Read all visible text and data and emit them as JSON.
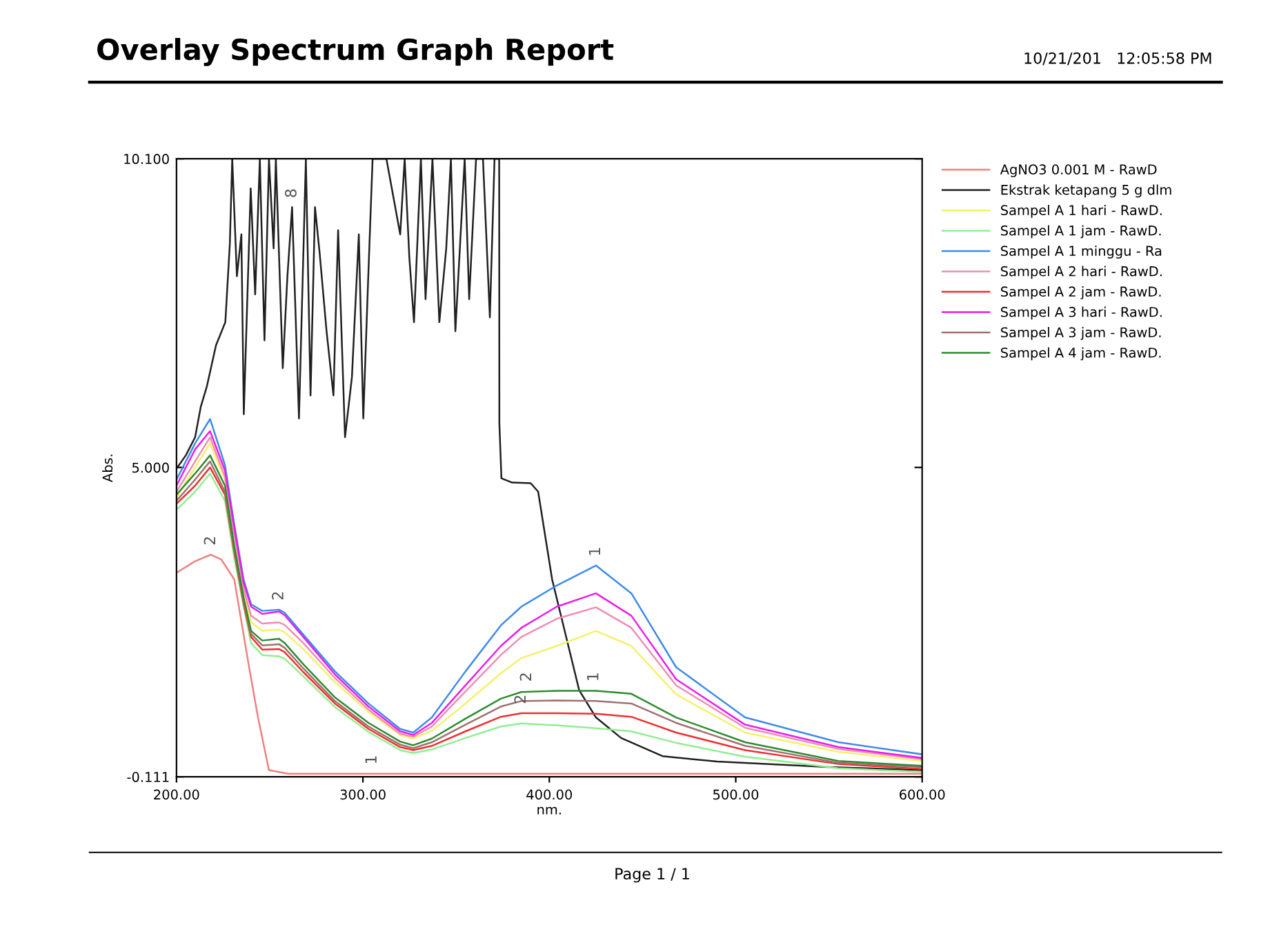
{
  "chart_data": {
    "type": "line",
    "title": "Overlay Spectrum Graph Report",
    "xlabel": "nm.",
    "ylabel": "Abs.",
    "annotations": [
      "10/21/201   12:05:58 PM",
      "Page 1 / 1",
      {
        "text": "8",
        "x": 262,
        "y": 9.3
      },
      {
        "text": "2",
        "x": 218.5,
        "y": 3.56
      },
      {
        "text": "1",
        "x": 305,
        "y": -0.06
      },
      {
        "text": "1",
        "x": 425,
        "y": 3.38
      },
      {
        "text": "2",
        "x": 255,
        "y": 2.65
      },
      {
        "text": "2",
        "x": 388,
        "y": 1.31
      },
      {
        "text": "1",
        "x": 424,
        "y": 1.31
      },
      {
        "text": "2",
        "x": 385,
        "y": 0.94
      }
    ],
    "x": [
      200,
      210,
      218,
      226,
      231,
      236,
      240,
      246,
      255,
      258,
      268,
      285,
      303,
      320,
      327,
      337,
      355,
      374,
      385,
      404,
      425,
      444,
      468,
      505,
      555,
      600
    ],
    "series": [
      {
        "name": "AgNO3 0.001 M - RawD",
        "color": "#f08080",
        "x": [
          200,
          210,
          218.5,
          224,
          231,
          238.5,
          243.7,
          249.6,
          260,
          600
        ],
        "values": [
          3.26,
          3.45,
          3.56,
          3.48,
          3.15,
          1.78,
          0.87,
          0.0,
          -0.06,
          -0.06
        ]
      },
      {
        "name": "Ekstrak ketapang 5 g dlm",
        "color": "#202020",
        "x": [
          200,
          205,
          210,
          213,
          216.3,
          221.2,
          226.2,
          228.6,
          229.9,
          232.4,
          234.8,
          236.1,
          239.8,
          242.2,
          244.7,
          247.2,
          249.6,
          252.1,
          253.3,
          257.0,
          259.5,
          262.0,
          265.7,
          269.4,
          271.9,
          274.3,
          276.8,
          280.5,
          284.2,
          286.7,
          290.4,
          294.1,
          297.8,
          300.2,
          302.7,
          305.2,
          312.6,
          320.0,
          322.4,
          324.9,
          327.4,
          331.1,
          333.6,
          337.3,
          341.0,
          344.7,
          347.2,
          349.6,
          354.6,
          357.0,
          360.7,
          364.4,
          368.1,
          370.6,
          373.1,
          373.2,
          374.3,
          380,
          390,
          394,
          401.5,
          416,
          425,
          438.5,
          460.7,
          490,
          549.6,
          600
        ],
        "values": [
          4.98,
          5.2,
          5.5,
          6.0,
          6.34,
          7.02,
          7.4,
          8.69,
          10.1,
          8.16,
          8.85,
          5.88,
          9.61,
          7.86,
          10.1,
          7.1,
          10.1,
          8.62,
          10.1,
          6.64,
          8.16,
          9.3,
          5.81,
          10.1,
          6.19,
          9.3,
          8.54,
          7.25,
          6.19,
          8.92,
          5.5,
          6.49,
          8.85,
          5.81,
          8.01,
          10.1,
          10.1,
          8.85,
          10.1,
          8.47,
          7.4,
          10.1,
          7.78,
          10.1,
          7.4,
          8.62,
          10.1,
          7.25,
          10.1,
          7.78,
          10.1,
          10.1,
          7.48,
          10.1,
          10.1,
          5.73,
          4.82,
          4.75,
          4.74,
          4.6,
          3.15,
          1.32,
          0.87,
          0.53,
          0.23,
          0.14,
          0.05,
          0.0
        ]
      },
      {
        "name": "Sampel A 1 hari - RawD.",
        "color": "#f5f06a",
        "values": [
          4.5,
          5.0,
          5.4,
          4.8,
          3.85,
          2.95,
          2.45,
          2.3,
          2.32,
          2.28,
          2.0,
          1.45,
          0.96,
          0.58,
          0.52,
          0.65,
          1.1,
          1.6,
          1.85,
          2.05,
          2.3,
          2.05,
          1.25,
          0.62,
          0.3,
          0.15
        ]
      },
      {
        "name": "Sampel A 1 jam - RawD.",
        "color": "#90ee90",
        "values": [
          4.3,
          4.6,
          4.9,
          4.45,
          3.5,
          2.7,
          2.1,
          1.9,
          1.88,
          1.84,
          1.55,
          1.04,
          0.63,
          0.33,
          0.28,
          0.34,
          0.53,
          0.72,
          0.77,
          0.74,
          0.69,
          0.64,
          0.45,
          0.22,
          0.03,
          -0.03
        ]
      },
      {
        "name": "Sampel A 1 minggu - Ra",
        "color": "#3c8ce8",
        "values": [
          4.8,
          5.4,
          5.8,
          5.04,
          4.06,
          3.15,
          2.74,
          2.63,
          2.65,
          2.6,
          2.24,
          1.63,
          1.1,
          0.68,
          0.62,
          0.87,
          1.63,
          2.39,
          2.7,
          3.05,
          3.38,
          2.92,
          1.7,
          0.87,
          0.46,
          0.26
        ]
      },
      {
        "name": "Sampel A 2 hari - RawD.",
        "color": "#f08cb4",
        "values": [
          4.6,
          5.1,
          5.5,
          4.85,
          3.9,
          3.0,
          2.55,
          2.42,
          2.44,
          2.4,
          2.1,
          1.52,
          1.0,
          0.6,
          0.55,
          0.72,
          1.3,
          1.9,
          2.2,
          2.5,
          2.69,
          2.35,
          1.4,
          0.7,
          0.35,
          0.18
        ]
      },
      {
        "name": "Sampel A 2 jam - RawD.",
        "color": "#ee3030",
        "values": [
          4.4,
          4.7,
          5.0,
          4.55,
          3.6,
          2.75,
          2.2,
          1.99,
          2.0,
          1.95,
          1.62,
          1.1,
          0.68,
          0.38,
          0.33,
          0.4,
          0.64,
          0.88,
          0.94,
          0.94,
          0.93,
          0.88,
          0.62,
          0.33,
          0.1,
          0.02
        ]
      },
      {
        "name": "Sampel A 3 hari - RawD.",
        "color": "#e81ee8",
        "values": [
          4.7,
          5.3,
          5.6,
          4.95,
          4.0,
          3.1,
          2.7,
          2.58,
          2.62,
          2.56,
          2.2,
          1.58,
          1.05,
          0.64,
          0.58,
          0.78,
          1.4,
          2.05,
          2.35,
          2.7,
          2.92,
          2.55,
          1.5,
          0.75,
          0.38,
          0.2
        ]
      },
      {
        "name": "Sampel A 3 jam - RawD.",
        "color": "#a07070",
        "values": [
          4.45,
          4.8,
          5.1,
          4.6,
          3.65,
          2.8,
          2.25,
          2.06,
          2.08,
          2.02,
          1.68,
          1.14,
          0.72,
          0.42,
          0.36,
          0.46,
          0.75,
          1.05,
          1.14,
          1.15,
          1.14,
          1.1,
          0.78,
          0.4,
          0.12,
          0.05
        ]
      },
      {
        "name": "Sampel A 4 jam - RawD.",
        "color": "#2e8b2e",
        "values": [
          4.55,
          4.9,
          5.2,
          4.7,
          3.7,
          2.85,
          2.3,
          2.14,
          2.17,
          2.1,
          1.75,
          1.2,
          0.78,
          0.47,
          0.41,
          0.52,
          0.85,
          1.18,
          1.29,
          1.31,
          1.31,
          1.26,
          0.87,
          0.46,
          0.15,
          0.07
        ]
      }
    ],
    "xlim": [
      200,
      600
    ],
    "ylim": [
      -0.111,
      10.1
    ],
    "xticks": [
      {
        "value": 200,
        "label": "200.00"
      },
      {
        "value": 300,
        "label": "300.00"
      },
      {
        "value": 400,
        "label": "400.00"
      },
      {
        "value": 500,
        "label": "500.00"
      },
      {
        "value": 600,
        "label": "600.00"
      }
    ],
    "yticks": [
      -0.111,
      {
        "value": 5,
        "label": "5.000"
      },
      {
        "value": 10.1,
        "label": "10.100"
      }
    ],
    "grid": false,
    "legend": "right",
    "marker": "none",
    "line_style": "solid"
  }
}
